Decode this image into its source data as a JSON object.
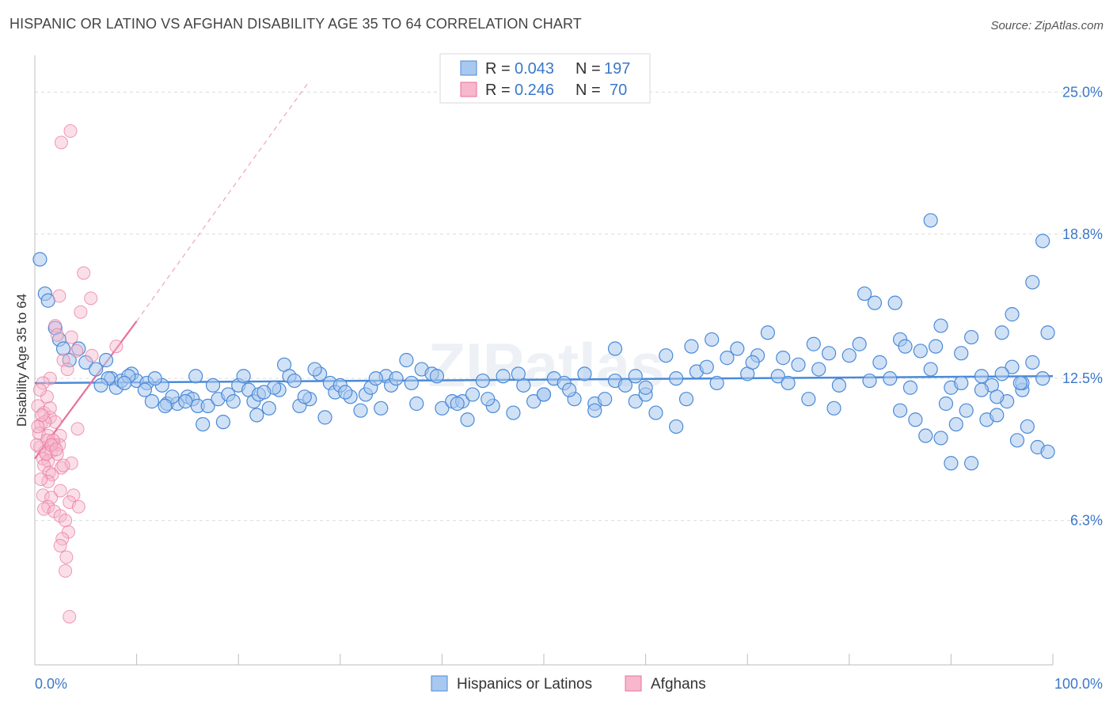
{
  "title": "HISPANIC OR LATINO VS AFGHAN DISABILITY AGE 35 TO 64 CORRELATION CHART",
  "source": "Source: ZipAtlas.com",
  "colors": {
    "blue": "#4a8ad8",
    "blue_fill": "#a9c8ef",
    "pink": "#e8709a",
    "pink_fill": "#f7b7cc",
    "label": "#3b78c8"
  },
  "chart_data": {
    "type": "scatter",
    "ylabel": "Disability Age 35 to 64",
    "xlim": [
      0,
      100
    ],
    "ylim": [
      0,
      26.6
    ],
    "x_tick_labels": [
      "0.0%",
      "100.0%"
    ],
    "y_tick_labels": [
      {
        "label": "25.0%",
        "value": 25.0
      },
      {
        "label": "18.8%",
        "value": 18.8
      },
      {
        "label": "12.5%",
        "value": 12.5
      },
      {
        "label": "6.3%",
        "value": 6.3
      }
    ],
    "legend_stats": [
      {
        "r_label": "R =",
        "r": "0.043",
        "n_label": "N =",
        "n": "197"
      },
      {
        "r_label": "R =",
        "r": "0.246",
        "n_label": "N =",
        "n": "70"
      }
    ],
    "series": [
      {
        "name": "Hispanics or Latinos",
        "trend": {
          "x0": 0,
          "y0": 12.3,
          "x1": 100,
          "y1": 12.6
        },
        "points": [
          [
            0.5,
            17.7
          ],
          [
            1,
            16.2
          ],
          [
            1.3,
            15.9
          ],
          [
            2,
            14.7
          ],
          [
            2.4,
            14.2
          ],
          [
            2.8,
            13.8
          ],
          [
            3.4,
            13.3
          ],
          [
            4.3,
            13.8
          ],
          [
            5,
            13.2
          ],
          [
            6,
            12.9
          ],
          [
            7,
            13.3
          ],
          [
            7.5,
            12.5
          ],
          [
            8,
            12.1
          ],
          [
            8.5,
            12.4
          ],
          [
            9.5,
            12.7
          ],
          [
            10,
            12.4
          ],
          [
            11,
            12.3
          ],
          [
            11.5,
            11.5
          ],
          [
            12.5,
            12.2
          ],
          [
            13,
            11.4
          ],
          [
            14,
            11.4
          ],
          [
            15,
            11.7
          ],
          [
            15.5,
            11.6
          ],
          [
            16,
            11.3
          ],
          [
            16.5,
            10.5
          ],
          [
            17,
            11.3
          ],
          [
            18,
            11.6
          ],
          [
            19,
            11.8
          ],
          [
            19.5,
            11.5
          ],
          [
            20,
            12.2
          ],
          [
            21,
            12.0
          ],
          [
            21.5,
            11.5
          ],
          [
            22,
            11.8
          ],
          [
            23,
            11.2
          ],
          [
            24,
            12.0
          ],
          [
            24.5,
            13.1
          ],
          [
            25,
            12.6
          ],
          [
            26,
            11.3
          ],
          [
            27,
            11.6
          ],
          [
            28,
            12.7
          ],
          [
            29,
            12.3
          ],
          [
            29.5,
            11.9
          ],
          [
            30,
            12.2
          ],
          [
            31,
            11.7
          ],
          [
            32,
            11.1
          ],
          [
            32.5,
            11.8
          ],
          [
            33,
            12.1
          ],
          [
            34,
            11.2
          ],
          [
            34.5,
            12.6
          ],
          [
            35,
            12.2
          ],
          [
            35.5,
            12.5
          ],
          [
            37,
            12.3
          ],
          [
            37.5,
            11.4
          ],
          [
            38,
            12.9
          ],
          [
            39,
            12.7
          ],
          [
            40,
            11.2
          ],
          [
            41,
            11.5
          ],
          [
            42,
            11.5
          ],
          [
            42.5,
            10.7
          ],
          [
            43,
            11.8
          ],
          [
            44,
            12.4
          ],
          [
            45,
            11.3
          ],
          [
            46,
            12.6
          ],
          [
            47,
            11.0
          ],
          [
            48,
            12.2
          ],
          [
            49,
            11.5
          ],
          [
            50,
            11.8
          ],
          [
            51,
            12.5
          ],
          [
            52,
            12.3
          ],
          [
            53,
            11.6
          ],
          [
            54,
            12.7
          ],
          [
            55,
            11.4
          ],
          [
            56,
            11.6
          ],
          [
            57,
            12.4
          ],
          [
            58,
            12.2
          ],
          [
            59,
            11.5
          ],
          [
            60,
            11.8
          ],
          [
            61,
            11.0
          ],
          [
            62,
            13.5
          ],
          [
            63,
            12.5
          ],
          [
            64,
            11.6
          ],
          [
            65,
            12.8
          ],
          [
            66,
            13.0
          ],
          [
            67,
            12.3
          ],
          [
            68,
            13.4
          ],
          [
            69,
            13.8
          ],
          [
            70,
            12.7
          ],
          [
            71,
            13.5
          ],
          [
            72,
            14.5
          ],
          [
            73,
            12.6
          ],
          [
            74,
            12.3
          ],
          [
            75,
            13.1
          ],
          [
            76,
            11.6
          ],
          [
            77,
            12.9
          ],
          [
            78,
            13.6
          ],
          [
            79,
            12.2
          ],
          [
            80,
            13.5
          ],
          [
            81,
            14.0
          ],
          [
            82,
            12.4
          ],
          [
            83,
            13.2
          ],
          [
            84,
            12.5
          ],
          [
            85,
            14.2
          ],
          [
            86,
            12.1
          ],
          [
            87,
            13.7
          ],
          [
            88,
            12.9
          ],
          [
            89,
            14.8
          ],
          [
            90,
            12.1
          ],
          [
            91,
            13.6
          ],
          [
            92,
            14.3
          ],
          [
            93,
            12.6
          ],
          [
            94,
            12.2
          ],
          [
            95,
            14.5
          ],
          [
            96,
            13.0
          ],
          [
            97,
            12.0
          ],
          [
            98,
            13.2
          ],
          [
            99,
            12.5
          ],
          [
            57,
            13.8
          ],
          [
            60,
            12.1
          ],
          [
            64.5,
            13.9
          ],
          [
            66.5,
            14.2
          ],
          [
            70.5,
            13.2
          ],
          [
            73.5,
            13.4
          ],
          [
            76.5,
            14.0
          ],
          [
            78.5,
            11.2
          ],
          [
            81.5,
            16.2
          ],
          [
            82.5,
            15.8
          ],
          [
            84.5,
            15.8
          ],
          [
            85.5,
            13.9
          ],
          [
            88.5,
            13.9
          ],
          [
            89.5,
            11.4
          ],
          [
            90.5,
            10.5
          ],
          [
            91.5,
            11.1
          ],
          [
            93.5,
            10.7
          ],
          [
            94.5,
            10.9
          ],
          [
            95.5,
            11.5
          ],
          [
            96.5,
            9.8
          ],
          [
            97.5,
            10.4
          ],
          [
            98.5,
            9.5
          ],
          [
            99.5,
            9.3
          ],
          [
            63,
            10.4
          ],
          [
            59,
            12.6
          ],
          [
            55,
            11.1
          ],
          [
            52.5,
            12.0
          ],
          [
            50,
            11.8
          ],
          [
            47.5,
            12.7
          ],
          [
            44.5,
            11.6
          ],
          [
            41.5,
            11.4
          ],
          [
            39.5,
            12.6
          ],
          [
            36.5,
            13.3
          ],
          [
            33.5,
            12.5
          ],
          [
            30.5,
            11.9
          ],
          [
            28.5,
            10.8
          ],
          [
            27.5,
            12.9
          ],
          [
            26.5,
            11.7
          ],
          [
            25.5,
            12.4
          ],
          [
            23.5,
            12.1
          ],
          [
            22.5,
            11.9
          ],
          [
            21.8,
            10.9
          ],
          [
            20.5,
            12.6
          ],
          [
            18.5,
            10.6
          ],
          [
            17.5,
            12.2
          ],
          [
            15.8,
            12.6
          ],
          [
            14.8,
            11.5
          ],
          [
            13.5,
            11.7
          ],
          [
            12.8,
            11.3
          ],
          [
            11.8,
            12.5
          ],
          [
            10.8,
            12.0
          ],
          [
            9.2,
            12.6
          ],
          [
            8.8,
            12.3
          ],
          [
            7.2,
            12.5
          ],
          [
            6.5,
            12.2
          ],
          [
            88,
            19.4
          ],
          [
            99,
            18.5
          ],
          [
            98,
            16.7
          ],
          [
            96,
            15.3
          ],
          [
            99.5,
            14.5
          ],
          [
            85,
            11.1
          ],
          [
            87.5,
            10.0
          ],
          [
            90,
            8.8
          ],
          [
            92,
            8.8
          ],
          [
            86.5,
            10.7
          ],
          [
            89,
            9.9
          ],
          [
            94.5,
            11.7
          ],
          [
            97,
            12.3
          ],
          [
            93,
            12.0
          ],
          [
            91,
            12.3
          ],
          [
            95,
            12.7
          ],
          [
            96.8,
            12.3
          ]
        ]
      },
      {
        "name": "Afghans",
        "trend": {
          "x0": 0,
          "y0": 9.0,
          "x1": 10,
          "y1": 15.0
        },
        "trend_extension": {
          "x0": 10,
          "y0": 15.0,
          "x1": 27,
          "y1": 25.5
        },
        "points": [
          [
            3.5,
            23.3
          ],
          [
            2.6,
            22.8
          ],
          [
            4.8,
            17.1
          ],
          [
            5.5,
            16.0
          ],
          [
            2.4,
            16.1
          ],
          [
            4.5,
            15.4
          ],
          [
            2,
            14.8
          ],
          [
            2.2,
            14.4
          ],
          [
            8,
            13.9
          ],
          [
            3.6,
            14.3
          ],
          [
            4.1,
            13.7
          ],
          [
            2.8,
            13.3
          ],
          [
            5.6,
            13.5
          ],
          [
            3.2,
            12.9
          ],
          [
            1.5,
            12.5
          ],
          [
            0.8,
            12.3
          ],
          [
            1.2,
            11.7
          ],
          [
            0.3,
            11.3
          ],
          [
            0.9,
            11.0
          ],
          [
            1.5,
            10.8
          ],
          [
            0.6,
            10.5
          ],
          [
            2,
            10.6
          ],
          [
            0.4,
            10.1
          ],
          [
            1.3,
            10.0
          ],
          [
            2.5,
            10.0
          ],
          [
            4.2,
            10.3
          ],
          [
            1.2,
            9.8
          ],
          [
            1.9,
            9.6
          ],
          [
            2.4,
            9.6
          ],
          [
            0.5,
            9.5
          ],
          [
            1,
            9.3
          ],
          [
            1.6,
            9.3
          ],
          [
            2.2,
            9.2
          ],
          [
            0.8,
            9.0
          ],
          [
            1.3,
            8.9
          ],
          [
            0.2,
            9.6
          ],
          [
            0.9,
            8.7
          ],
          [
            1.4,
            8.4
          ],
          [
            2.6,
            8.6
          ],
          [
            3.6,
            8.8
          ],
          [
            1.7,
            8.3
          ],
          [
            1.3,
            8.0
          ],
          [
            2.5,
            7.6
          ],
          [
            0.8,
            7.4
          ],
          [
            1.6,
            7.3
          ],
          [
            3.8,
            7.4
          ],
          [
            3.4,
            7.1
          ],
          [
            1.3,
            6.9
          ],
          [
            0.9,
            6.8
          ],
          [
            4.3,
            6.9
          ],
          [
            1.9,
            6.7
          ],
          [
            2.5,
            6.5
          ],
          [
            3,
            6.3
          ],
          [
            3.3,
            5.8
          ],
          [
            2.7,
            5.5
          ],
          [
            2.5,
            5.2
          ],
          [
            3.1,
            4.7
          ],
          [
            3,
            4.1
          ],
          [
            3.4,
            2.1
          ],
          [
            1,
            10.6
          ],
          [
            0.5,
            12.0
          ],
          [
            1.5,
            11.2
          ],
          [
            1.8,
            9.8
          ],
          [
            1.1,
            9.2
          ],
          [
            0.7,
            10.9
          ],
          [
            0.3,
            10.4
          ],
          [
            1.6,
            9.6
          ],
          [
            2.8,
            8.7
          ],
          [
            0.6,
            8.1
          ],
          [
            2.1,
            9.4
          ]
        ]
      }
    ]
  },
  "bottom_legend": [
    "Hispanics or Latinos",
    "Afghans"
  ]
}
